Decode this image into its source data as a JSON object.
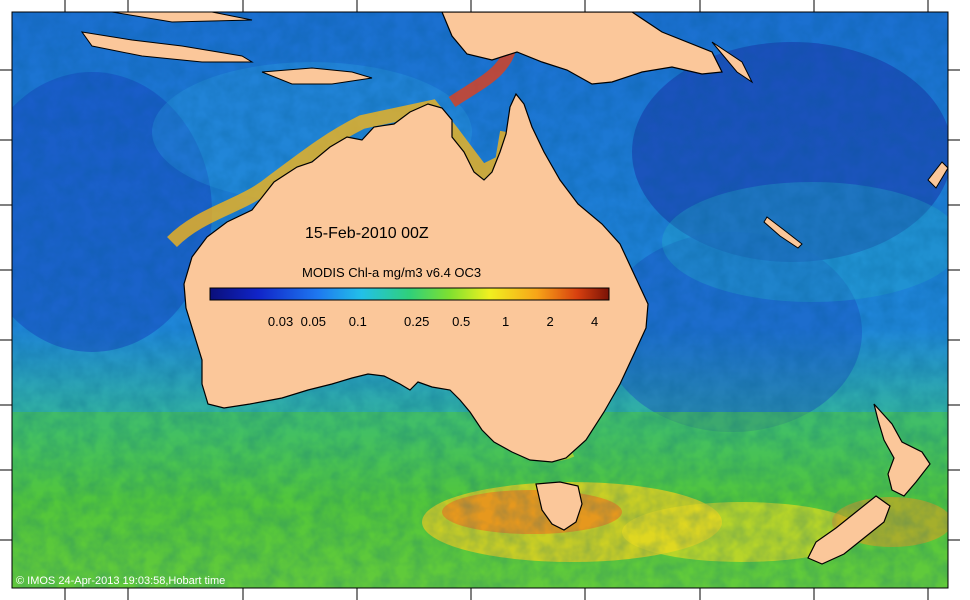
{
  "map": {
    "date_label": "15-Feb-2010 00Z",
    "colorbar_title": "MODIS Chl-a mg/m3 v6.4 OC3",
    "colorbar_ticks": [
      "0.03",
      "0.05",
      "0.1",
      "0.25",
      "0.5",
      "1",
      "2",
      "4"
    ],
    "colorbar_tick_values": [
      0.03,
      0.05,
      0.1,
      0.25,
      0.5,
      1,
      2,
      4
    ],
    "colorbar_range": [
      0.01,
      5
    ],
    "colorbar_scale": "log",
    "credit": "© IMOS 24-Apr-2013 19:03:58,Hobart time",
    "colors": {
      "land": "#fbc79a",
      "ocean_deep": "#1a3fb5",
      "ocean_mid": "#1c7fd6",
      "ocean_green": "#3ec74a",
      "ocean_high": "#e57a1c",
      "coast": "#000000"
    }
  }
}
